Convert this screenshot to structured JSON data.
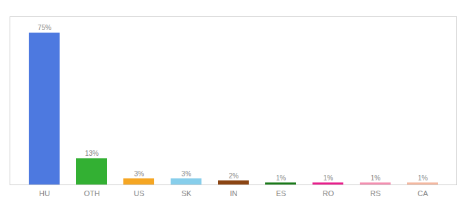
{
  "chart_data": {
    "type": "bar",
    "categories": [
      "HU",
      "OTH",
      "US",
      "SK",
      "IN",
      "ES",
      "RO",
      "RS",
      "CA"
    ],
    "values": [
      75,
      13,
      3,
      3,
      2,
      1,
      1,
      1,
      1
    ],
    "value_labels": [
      "75%",
      "13%",
      "3%",
      "3%",
      "2%",
      "1%",
      "1%",
      "1%",
      "1%"
    ],
    "colors": [
      "#4d79e0",
      "#33b033",
      "#f5a623",
      "#87ceeb",
      "#8b4513",
      "#1a7a1a",
      "#e91e8c",
      "#f48fb1",
      "#f4b8a0"
    ],
    "ylim": [
      0,
      83
    ],
    "data_labels": true,
    "tick_labels": "x",
    "grid": false
  }
}
